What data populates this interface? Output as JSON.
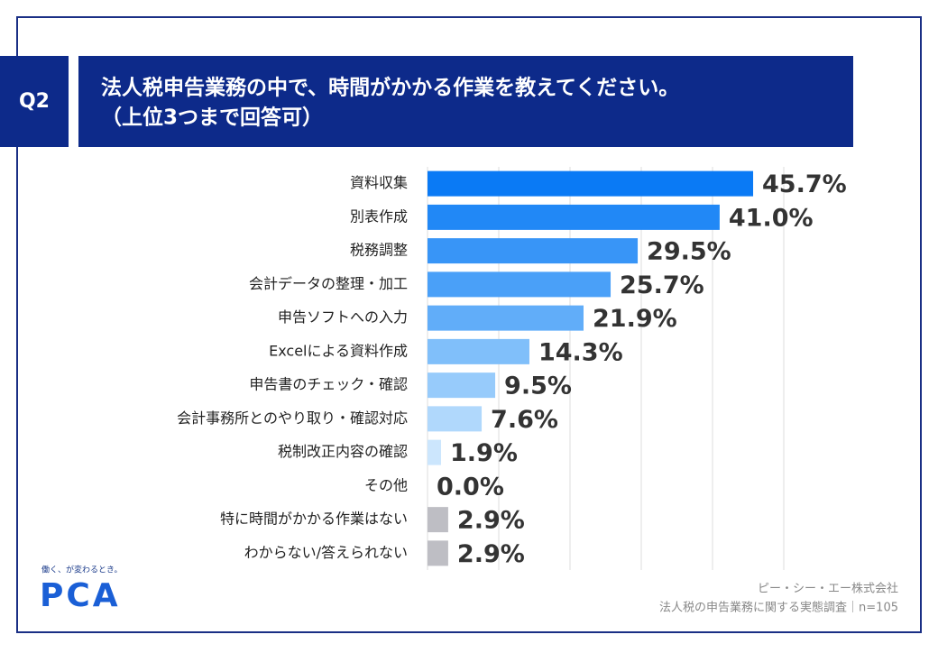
{
  "q_label": "Q2",
  "chart_data": {
    "type": "bar",
    "orientation": "horizontal",
    "title": [
      "法人税申告業務の中で、時間がかかる作業を教えてください。",
      "（上位3つまで回答可）"
    ],
    "categories": [
      "資料収集",
      "別表作成",
      "税務調整",
      "会計データの整理・加工",
      "申告ソフトへの入力",
      "Excelによる資料作成",
      "申告書のチェック・確認",
      "会計事務所とのやり取り・確認対応",
      "税制改正内容の確認",
      "その他",
      "特に時間がかかる作業はない",
      "わからない/答えられない"
    ],
    "values": [
      45.7,
      41.0,
      29.5,
      25.7,
      21.9,
      14.3,
      9.5,
      7.6,
      1.9,
      0.0,
      2.9,
      2.9
    ],
    "value_labels": [
      "45.7%",
      "41.0%",
      "29.5%",
      "25.7%",
      "21.9%",
      "14.3%",
      "9.5%",
      "7.6%",
      "1.9%",
      "0.0%",
      "2.9%",
      "2.9%"
    ],
    "colors": [
      "#0a7af5",
      "#2188f6",
      "#3895f7",
      "#4aa0f8",
      "#61adf9",
      "#80bffa",
      "#97cbfb",
      "#b0d8fc",
      "#cce6fd",
      "#dcedfd",
      "#bebec4",
      "#bebec4"
    ],
    "xlim": [
      0,
      50
    ],
    "xticks": [
      0,
      10,
      20,
      30,
      40,
      50
    ],
    "grid": true
  },
  "logo": {
    "tagline": "働く、が変わるとき。",
    "name": "PCA"
  },
  "source": [
    "ピー・シー・エー株式会社",
    "法人税の申告業務に関する実態調査｜n=105"
  ]
}
